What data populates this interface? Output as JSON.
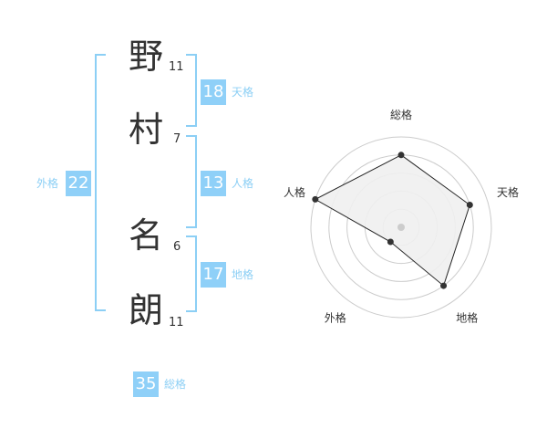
{
  "name": {
    "chars": [
      {
        "char": "野",
        "strokes": "11"
      },
      {
        "char": "村",
        "strokes": "7"
      },
      {
        "char": "名",
        "strokes": "6"
      },
      {
        "char": "朗",
        "strokes": "11"
      }
    ]
  },
  "fortunes": {
    "tenkaku": {
      "label": "天格",
      "value": "18"
    },
    "jinkaku": {
      "label": "人格",
      "value": "13"
    },
    "chikaku": {
      "label": "地格",
      "value": "17"
    },
    "gaikaku": {
      "label": "外格",
      "value": "22"
    },
    "soukaku": {
      "label": "総格",
      "value": "35"
    }
  },
  "colors": {
    "accent": "#8fd0f8",
    "label": "#8ccff5"
  },
  "chart_data": {
    "type": "radar",
    "axes": [
      "総格",
      "天格",
      "地格",
      "外格",
      "人格"
    ],
    "values": [
      4,
      4,
      4,
      1,
      5
    ],
    "range": [
      0,
      5
    ],
    "rings": 5
  }
}
